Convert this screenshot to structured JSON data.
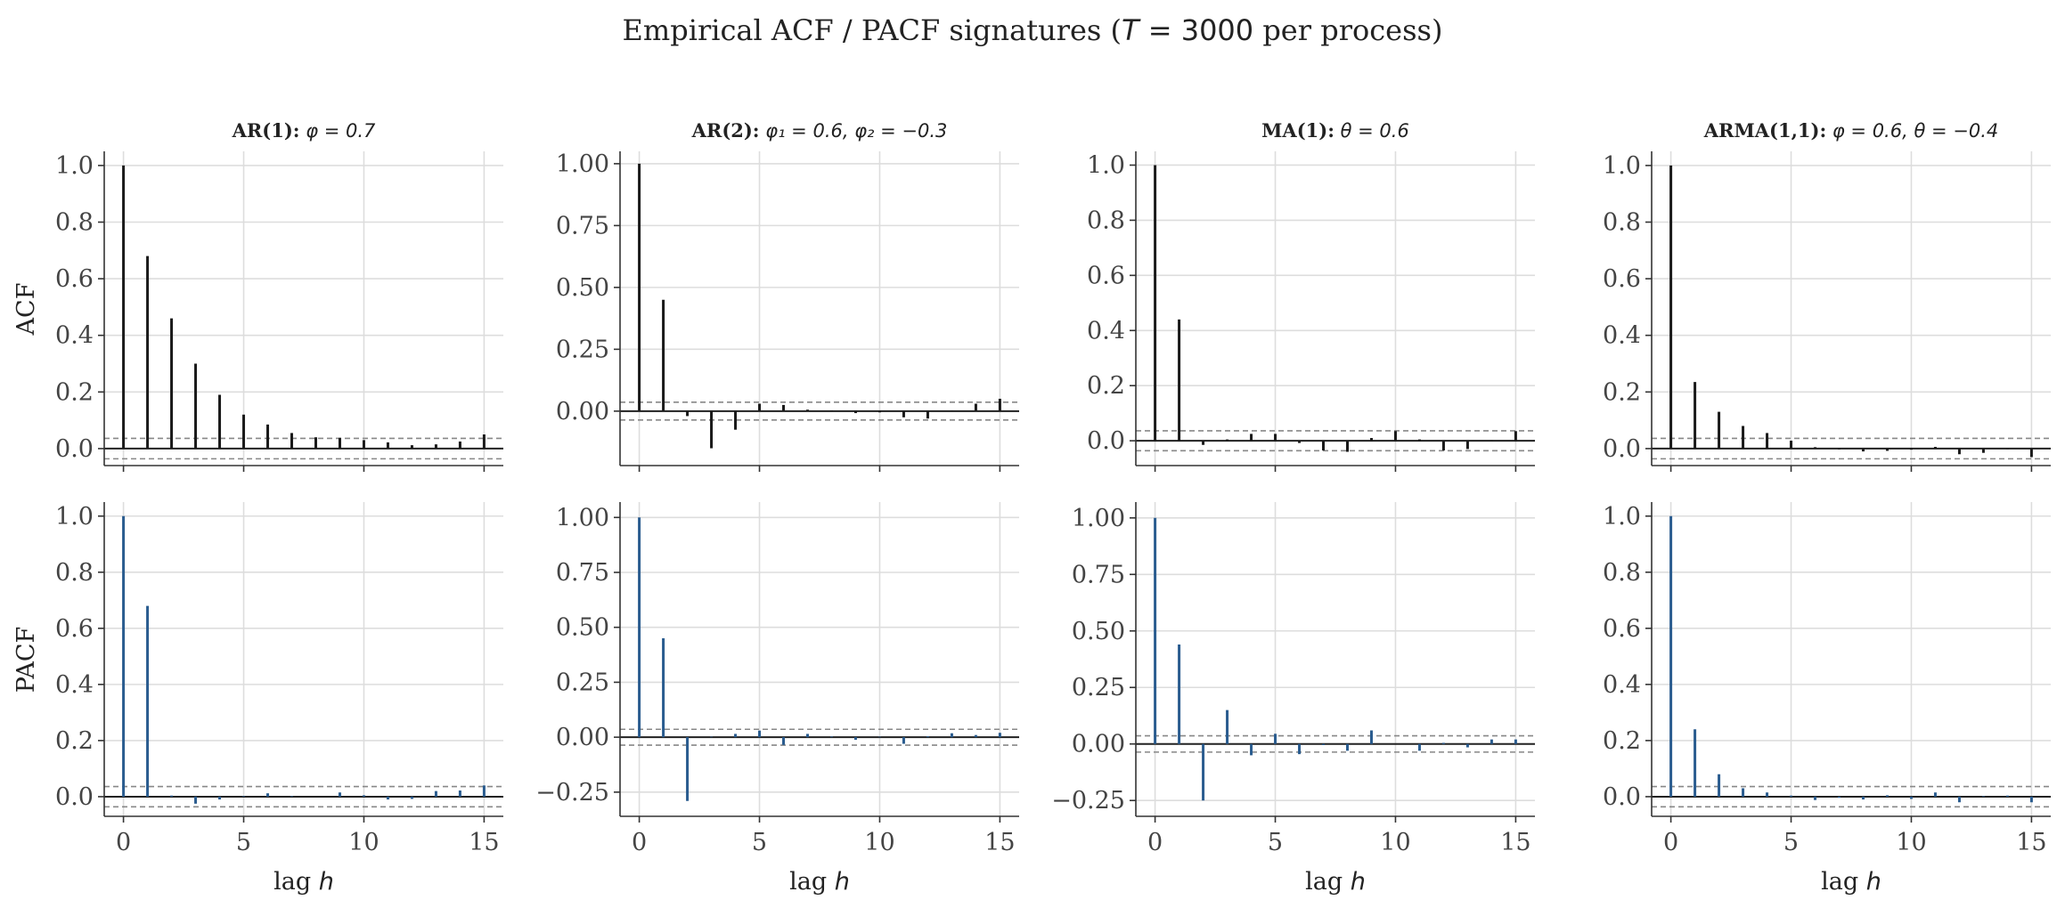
{
  "figure": {
    "suptitle_pre": "Empirical ACF / PACF signatures (",
    "suptitle_math": "T",
    "suptitle_eq": " = 3000",
    "suptitle_post": " per process)",
    "row_labels": [
      "ACF",
      "PACF"
    ],
    "xlabel_pre": "lag ",
    "xlabel_math": "h",
    "colors": {
      "acf": "#1a1a1a",
      "pacf": "#2a5c8f",
      "conf": "#888888",
      "grid": "#dddddd"
    }
  },
  "chart_data": [
    {
      "type": "bar",
      "name": "acf-ar1",
      "title": {
        "bold": "AR(1):",
        "rest": " φ = 0.7"
      },
      "ylabel": "ACF",
      "xlabel": "",
      "xlim": [
        -0.8,
        15.8
      ],
      "ylim": [
        -0.06,
        1.05
      ],
      "yticks": [
        0.0,
        0.2,
        0.4,
        0.6,
        0.8,
        1.0
      ],
      "ytick_labels": [
        "0.0",
        "0.2",
        "0.4",
        "0.6",
        "0.8",
        "1.0"
      ],
      "xticks": [
        0,
        5,
        10,
        15
      ],
      "show_xtick_labels": false,
      "conf_band": 0.036,
      "x": [
        0,
        1,
        2,
        3,
        4,
        5,
        6,
        7,
        8,
        9,
        10,
        11,
        12,
        13,
        14,
        15
      ],
      "values": [
        1.0,
        0.68,
        0.46,
        0.3,
        0.19,
        0.12,
        0.085,
        0.055,
        0.04,
        0.038,
        0.03,
        0.022,
        0.012,
        0.015,
        0.025,
        0.05
      ]
    },
    {
      "type": "bar",
      "name": "acf-ar2",
      "title": {
        "bold": "AR(2):",
        "rest": " φ₁ = 0.6,  φ₂ = −0.3"
      },
      "ylabel": "",
      "xlabel": "",
      "xlim": [
        -0.8,
        15.8
      ],
      "ylim": [
        -0.22,
        1.05
      ],
      "yticks": [
        0.0,
        0.25,
        0.5,
        0.75,
        1.0
      ],
      "ytick_labels": [
        "0.00",
        "0.25",
        "0.50",
        "0.75",
        "1.00"
      ],
      "xticks": [
        0,
        5,
        10,
        15
      ],
      "show_xtick_labels": false,
      "conf_band": 0.036,
      "x": [
        0,
        1,
        2,
        3,
        4,
        5,
        6,
        7,
        8,
        9,
        10,
        11,
        12,
        13,
        14,
        15
      ],
      "values": [
        1.0,
        0.45,
        -0.02,
        -0.15,
        -0.075,
        0.03,
        0.025,
        0.006,
        0.003,
        -0.008,
        -0.005,
        -0.025,
        -0.03,
        0.002,
        0.03,
        0.05
      ]
    },
    {
      "type": "bar",
      "name": "acf-ma1",
      "title": {
        "bold": "MA(1):",
        "rest": " θ = 0.6"
      },
      "ylabel": "",
      "xlabel": "",
      "xlim": [
        -0.8,
        15.8
      ],
      "ylim": [
        -0.09,
        1.05
      ],
      "yticks": [
        0.0,
        0.2,
        0.4,
        0.6,
        0.8,
        1.0
      ],
      "ytick_labels": [
        "0.0",
        "0.2",
        "0.4",
        "0.6",
        "0.8",
        "1.0"
      ],
      "xticks": [
        0,
        5,
        10,
        15
      ],
      "show_xtick_labels": false,
      "conf_band": 0.036,
      "x": [
        0,
        1,
        2,
        3,
        4,
        5,
        6,
        7,
        8,
        9,
        10,
        11,
        12,
        13,
        14,
        15
      ],
      "values": [
        1.0,
        0.44,
        -0.015,
        0.005,
        0.025,
        0.025,
        -0.008,
        -0.035,
        -0.04,
        0.01,
        0.035,
        0.005,
        -0.035,
        -0.03,
        0.002,
        0.035
      ]
    },
    {
      "type": "bar",
      "name": "acf-arma11",
      "title": {
        "bold": "ARMA(1,1):",
        "rest": " φ = 0.6,  θ = −0.4"
      },
      "ylabel": "",
      "xlabel": "",
      "xlim": [
        -0.8,
        15.8
      ],
      "ylim": [
        -0.06,
        1.05
      ],
      "yticks": [
        0.0,
        0.2,
        0.4,
        0.6,
        0.8,
        1.0
      ],
      "ytick_labels": [
        "0.0",
        "0.2",
        "0.4",
        "0.6",
        "0.8",
        "1.0"
      ],
      "xticks": [
        0,
        5,
        10,
        15
      ],
      "show_xtick_labels": false,
      "conf_band": 0.036,
      "x": [
        0,
        1,
        2,
        3,
        4,
        5,
        6,
        7,
        8,
        9,
        10,
        11,
        12,
        13,
        14,
        15
      ],
      "values": [
        1.0,
        0.235,
        0.13,
        0.08,
        0.055,
        0.028,
        0.005,
        -0.003,
        -0.01,
        -0.008,
        -0.004,
        0.006,
        -0.02,
        -0.015,
        -0.002,
        -0.03
      ]
    },
    {
      "type": "bar",
      "name": "pacf-ar1",
      "title": null,
      "ylabel": "PACF",
      "xlabel": "lag h",
      "xlim": [
        -0.8,
        15.8
      ],
      "ylim": [
        -0.07,
        1.05
      ],
      "yticks": [
        0.0,
        0.2,
        0.4,
        0.6,
        0.8,
        1.0
      ],
      "ytick_labels": [
        "0.0",
        "0.2",
        "0.4",
        "0.6",
        "0.8",
        "1.0"
      ],
      "xticks": [
        0,
        5,
        10,
        15
      ],
      "xtick_labels": [
        "0",
        "5",
        "10",
        "15"
      ],
      "show_xtick_labels": true,
      "conf_band": 0.036,
      "x": [
        0,
        1,
        2,
        3,
        4,
        5,
        6,
        7,
        8,
        9,
        10,
        11,
        12,
        13,
        14,
        15
      ],
      "values": [
        1.0,
        0.68,
        0.004,
        -0.025,
        -0.01,
        0.002,
        0.012,
        0.002,
        0.0,
        0.015,
        0.005,
        -0.01,
        -0.008,
        0.02,
        0.022,
        0.04
      ]
    },
    {
      "type": "bar",
      "name": "pacf-ar2",
      "title": null,
      "ylabel": "",
      "xlabel": "lag h",
      "xlim": [
        -0.8,
        15.8
      ],
      "ylim": [
        -0.36,
        1.07
      ],
      "yticks": [
        -0.25,
        0.0,
        0.25,
        0.5,
        0.75,
        1.0
      ],
      "ytick_labels": [
        "−0.25",
        "0.00",
        "0.25",
        "0.50",
        "0.75",
        "1.00"
      ],
      "xticks": [
        0,
        5,
        10,
        15
      ],
      "xtick_labels": [
        "0",
        "5",
        "10",
        "15"
      ],
      "show_xtick_labels": true,
      "conf_band": 0.036,
      "x": [
        0,
        1,
        2,
        3,
        4,
        5,
        6,
        7,
        8,
        9,
        10,
        11,
        12,
        13,
        14,
        15
      ],
      "values": [
        1.0,
        0.45,
        -0.29,
        0.002,
        0.015,
        0.03,
        -0.035,
        0.015,
        0.003,
        -0.012,
        0.002,
        -0.03,
        0.004,
        0.018,
        0.01,
        0.02
      ]
    },
    {
      "type": "bar",
      "name": "pacf-ma1",
      "title": null,
      "ylabel": "",
      "xlabel": "lag h",
      "xlim": [
        -0.8,
        15.8
      ],
      "ylim": [
        -0.32,
        1.07
      ],
      "yticks": [
        -0.25,
        0.0,
        0.25,
        0.5,
        0.75,
        1.0
      ],
      "ytick_labels": [
        "−0.25",
        "0.00",
        "0.25",
        "0.50",
        "0.75",
        "1.00"
      ],
      "xticks": [
        0,
        5,
        10,
        15
      ],
      "xtick_labels": [
        "0",
        "5",
        "10",
        "15"
      ],
      "show_xtick_labels": true,
      "conf_band": 0.036,
      "x": [
        0,
        1,
        2,
        3,
        4,
        5,
        6,
        7,
        8,
        9,
        10,
        11,
        12,
        13,
        14,
        15
      ],
      "values": [
        1.0,
        0.44,
        -0.25,
        0.15,
        -0.05,
        0.045,
        -0.045,
        -0.005,
        -0.03,
        0.06,
        0.0,
        -0.03,
        0.005,
        -0.015,
        0.02,
        0.02
      ]
    },
    {
      "type": "bar",
      "name": "pacf-arma11",
      "title": null,
      "ylabel": "",
      "xlabel": "lag h",
      "xlim": [
        -0.8,
        15.8
      ],
      "ylim": [
        -0.07,
        1.05
      ],
      "yticks": [
        0.0,
        0.2,
        0.4,
        0.6,
        0.8,
        1.0
      ],
      "ytick_labels": [
        "0.0",
        "0.2",
        "0.4",
        "0.6",
        "0.8",
        "1.0"
      ],
      "xticks": [
        0,
        5,
        10,
        15
      ],
      "xtick_labels": [
        "0",
        "5",
        "10",
        "15"
      ],
      "show_xtick_labels": true,
      "conf_band": 0.036,
      "x": [
        0,
        1,
        2,
        3,
        4,
        5,
        6,
        7,
        8,
        9,
        10,
        11,
        12,
        13,
        14,
        15
      ],
      "values": [
        1.0,
        0.24,
        0.08,
        0.03,
        0.015,
        0.004,
        -0.012,
        -0.004,
        -0.01,
        0.005,
        -0.008,
        0.015,
        -0.02,
        0.002,
        0.004,
        -0.02
      ]
    }
  ]
}
